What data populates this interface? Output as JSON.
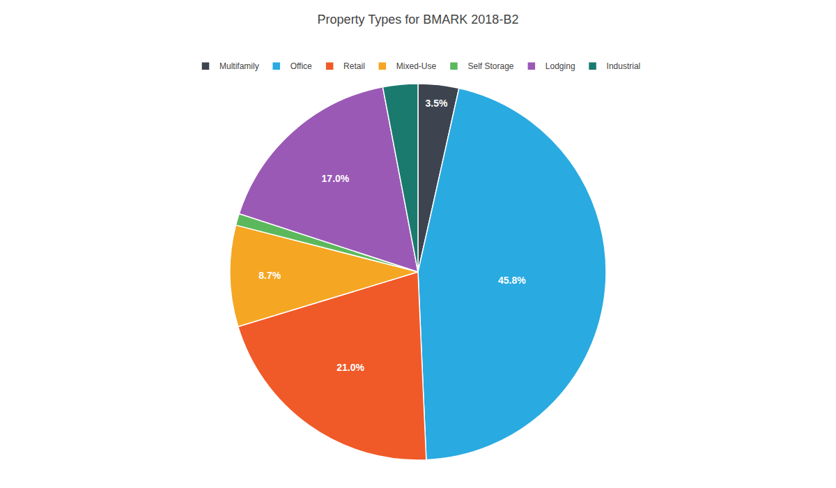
{
  "chart_data": {
    "type": "pie",
    "title": "Property Types for BMARK 2018-B2",
    "categories": [
      "Multifamily",
      "Office",
      "Retail",
      "Mixed-Use",
      "Self Storage",
      "Lodging",
      "Industrial"
    ],
    "values": [
      3.5,
      45.8,
      21.0,
      8.7,
      1.0,
      17.0,
      3.0
    ],
    "value_labels": [
      "3.5%",
      "45.8%",
      "21.0%",
      "8.7%",
      null,
      "17.0%",
      null
    ],
    "colors": [
      "#3d4450",
      "#29aae1",
      "#f05a28",
      "#f5a623",
      "#5cb85c",
      "#9b59b6",
      "#1a7a6e"
    ],
    "data_labels": true,
    "legend": "top"
  }
}
